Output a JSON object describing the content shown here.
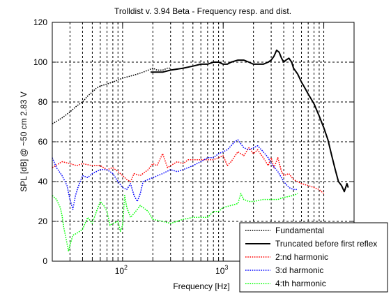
{
  "chart_data": {
    "type": "line",
    "title": "Trolldist v. 3.94 Beta - Frequency resp. and dist.",
    "xlabel": "Frequency [Hz]",
    "ylabel": "SPL [dB] @ ~50 cm 2.83 V",
    "xscale": "log",
    "xlim": [
      20,
      20000
    ],
    "ylim": [
      0,
      120
    ],
    "x_ticks": [
      {
        "value": 100,
        "base": "10",
        "exp": "2"
      },
      {
        "value": 1000,
        "base": "10",
        "exp": "3"
      },
      {
        "value": 10000,
        "base": "10",
        "exp": "4"
      }
    ],
    "y_ticks": [
      0,
      20,
      40,
      60,
      80,
      100,
      120
    ],
    "grid": true,
    "legend_position": "bottom-right",
    "series": [
      {
        "name": "Fundamental",
        "color": "#000000",
        "style": "dotted",
        "points": [
          [
            20,
            69
          ],
          [
            25,
            72
          ],
          [
            30,
            75
          ],
          [
            35,
            78
          ],
          [
            40,
            80
          ],
          [
            45,
            83
          ],
          [
            50,
            85
          ],
          [
            55,
            87
          ],
          [
            60,
            88
          ],
          [
            70,
            89
          ],
          [
            80,
            90
          ],
          [
            90,
            91
          ],
          [
            100,
            92
          ],
          [
            120,
            93
          ],
          [
            140,
            94
          ],
          [
            160,
            95
          ],
          [
            180,
            96
          ],
          [
            200,
            97
          ],
          [
            220,
            96
          ],
          [
            250,
            96
          ],
          [
            280,
            97
          ],
          [
            300,
            97
          ]
        ]
      },
      {
        "name": "Truncated before first reflex",
        "color": "#000000",
        "style": "solid",
        "points": [
          [
            190,
            95
          ],
          [
            250,
            95
          ],
          [
            300,
            96
          ],
          [
            400,
            97
          ],
          [
            500,
            98
          ],
          [
            600,
            99
          ],
          [
            700,
            99
          ],
          [
            800,
            100
          ],
          [
            900,
            100
          ],
          [
            1000,
            99
          ],
          [
            1100,
            99
          ],
          [
            1200,
            100
          ],
          [
            1400,
            101
          ],
          [
            1600,
            101
          ],
          [
            1800,
            100
          ],
          [
            2000,
            99
          ],
          [
            2200,
            99
          ],
          [
            2500,
            99
          ],
          [
            2800,
            100
          ],
          [
            3000,
            101
          ],
          [
            3200,
            103
          ],
          [
            3400,
            106
          ],
          [
            3600,
            105
          ],
          [
            3800,
            102
          ],
          [
            4000,
            100
          ],
          [
            4200,
            101
          ],
          [
            4500,
            102
          ],
          [
            4800,
            100
          ],
          [
            5000,
            97
          ],
          [
            5500,
            94
          ],
          [
            6000,
            90
          ],
          [
            6500,
            87
          ],
          [
            7000,
            84
          ],
          [
            8000,
            79
          ],
          [
            9000,
            73
          ],
          [
            10000,
            67
          ],
          [
            11000,
            61
          ],
          [
            12000,
            53
          ],
          [
            13000,
            46
          ],
          [
            14000,
            40
          ],
          [
            15000,
            38
          ],
          [
            16000,
            35
          ],
          [
            17000,
            39
          ],
          [
            17500,
            37
          ]
        ]
      },
      {
        "name": "2:nd harmonic",
        "color": "#ff0000",
        "style": "dotted",
        "points": [
          [
            20,
            47
          ],
          [
            25,
            50
          ],
          [
            30,
            49
          ],
          [
            35,
            48
          ],
          [
            40,
            49
          ],
          [
            50,
            48
          ],
          [
            60,
            48
          ],
          [
            70,
            46
          ],
          [
            80,
            47
          ],
          [
            90,
            45
          ],
          [
            100,
            43
          ],
          [
            110,
            41
          ],
          [
            120,
            40
          ],
          [
            130,
            44
          ],
          [
            150,
            43
          ],
          [
            180,
            46
          ],
          [
            200,
            49
          ],
          [
            220,
            48
          ],
          [
            250,
            54
          ],
          [
            280,
            47
          ],
          [
            300,
            48
          ],
          [
            350,
            50
          ],
          [
            400,
            49
          ],
          [
            450,
            51
          ],
          [
            500,
            51
          ],
          [
            600,
            51
          ],
          [
            700,
            51
          ],
          [
            800,
            51
          ],
          [
            900,
            52
          ],
          [
            1000,
            53
          ],
          [
            1100,
            48
          ],
          [
            1200,
            50
          ],
          [
            1400,
            55
          ],
          [
            1600,
            53
          ],
          [
            1800,
            57
          ],
          [
            2000,
            54
          ],
          [
            2200,
            56
          ],
          [
            2500,
            52
          ],
          [
            2800,
            48
          ],
          [
            3000,
            52
          ],
          [
            3200,
            47
          ],
          [
            3500,
            52
          ],
          [
            3800,
            45
          ],
          [
            4000,
            43
          ],
          [
            4500,
            44
          ],
          [
            5000,
            41
          ],
          [
            6000,
            39
          ],
          [
            7000,
            38
          ],
          [
            8000,
            37
          ],
          [
            9000,
            36
          ],
          [
            10000,
            34
          ]
        ]
      },
      {
        "name": "3:d harmonic",
        "color": "#0000ff",
        "style": "dotted",
        "points": [
          [
            20,
            52
          ],
          [
            22,
            47
          ],
          [
            25,
            43
          ],
          [
            28,
            38
          ],
          [
            30,
            31
          ],
          [
            32,
            26
          ],
          [
            34,
            33
          ],
          [
            36,
            37
          ],
          [
            40,
            43
          ],
          [
            45,
            42
          ],
          [
            50,
            44
          ],
          [
            60,
            46
          ],
          [
            70,
            46
          ],
          [
            80,
            44
          ],
          [
            90,
            40
          ],
          [
            100,
            37
          ],
          [
            110,
            36
          ],
          [
            120,
            39
          ],
          [
            130,
            33
          ],
          [
            140,
            30
          ],
          [
            150,
            34
          ],
          [
            160,
            40
          ],
          [
            180,
            41
          ],
          [
            200,
            42
          ],
          [
            250,
            44
          ],
          [
            300,
            46
          ],
          [
            350,
            45
          ],
          [
            400,
            46
          ],
          [
            500,
            48
          ],
          [
            600,
            50
          ],
          [
            700,
            52
          ],
          [
            800,
            52
          ],
          [
            900,
            54
          ],
          [
            1000,
            55
          ],
          [
            1100,
            56
          ],
          [
            1200,
            58
          ],
          [
            1300,
            60
          ],
          [
            1400,
            61
          ],
          [
            1500,
            59
          ],
          [
            1600,
            57
          ],
          [
            1800,
            56
          ],
          [
            2000,
            57
          ],
          [
            2200,
            58
          ],
          [
            2500,
            55
          ],
          [
            2800,
            52
          ],
          [
            3000,
            49
          ],
          [
            3500,
            45
          ],
          [
            4000,
            40
          ],
          [
            4500,
            37
          ],
          [
            5000,
            36
          ],
          [
            5500,
            36
          ]
        ]
      },
      {
        "name": "4:th harmonic",
        "color": "#00ff00",
        "style": "dotted",
        "points": [
          [
            20,
            33
          ],
          [
            22,
            31
          ],
          [
            24,
            27
          ],
          [
            25,
            23
          ],
          [
            26,
            17
          ],
          [
            27,
            13
          ],
          [
            28,
            9
          ],
          [
            29,
            5
          ],
          [
            30,
            8
          ],
          [
            32,
            13
          ],
          [
            35,
            14
          ],
          [
            40,
            16
          ],
          [
            45,
            22
          ],
          [
            50,
            19
          ],
          [
            55,
            25
          ],
          [
            60,
            30
          ],
          [
            65,
            28
          ],
          [
            70,
            25
          ],
          [
            75,
            18
          ],
          [
            80,
            19
          ],
          [
            90,
            20
          ],
          [
            95,
            15
          ],
          [
            100,
            18
          ],
          [
            105,
            33
          ],
          [
            110,
            27
          ],
          [
            120,
            22
          ],
          [
            130,
            24
          ],
          [
            140,
            26
          ],
          [
            150,
            28
          ],
          [
            180,
            25
          ],
          [
            200,
            21
          ],
          [
            250,
            20
          ],
          [
            300,
            19
          ],
          [
            400,
            21
          ],
          [
            500,
            22
          ],
          [
            600,
            22
          ],
          [
            700,
            22
          ],
          [
            800,
            25
          ],
          [
            900,
            25
          ],
          [
            1000,
            27
          ],
          [
            1200,
            28
          ],
          [
            1400,
            29
          ],
          [
            1500,
            34
          ],
          [
            1600,
            31
          ],
          [
            1800,
            30
          ],
          [
            2000,
            30
          ],
          [
            2500,
            31
          ],
          [
            3000,
            31
          ],
          [
            3500,
            31
          ],
          [
            4000,
            32
          ],
          [
            5000,
            33
          ],
          [
            5500,
            34
          ]
        ]
      }
    ]
  }
}
